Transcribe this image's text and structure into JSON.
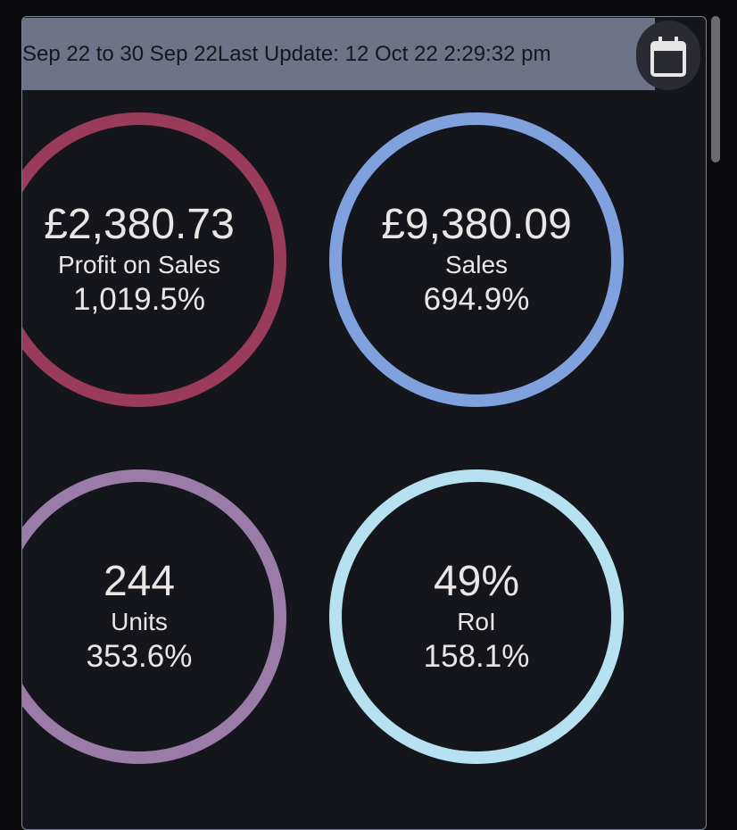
{
  "header": {
    "date_range": "Sep 22 to 30 Sep 22",
    "last_update": "Last Update: 12 Oct 22 2:29:32 pm"
  },
  "tiles": [
    {
      "value": "£2,380.73",
      "label": "Profit on Sales",
      "change": "1,019.5%"
    },
    {
      "value": "£9,380.09",
      "label": "Sales",
      "change": "694.9%"
    },
    {
      "value": "244",
      "label": "Units",
      "change": "353.6%"
    },
    {
      "value": "49%",
      "label": "RoI",
      "change": "158.1%"
    }
  ]
}
